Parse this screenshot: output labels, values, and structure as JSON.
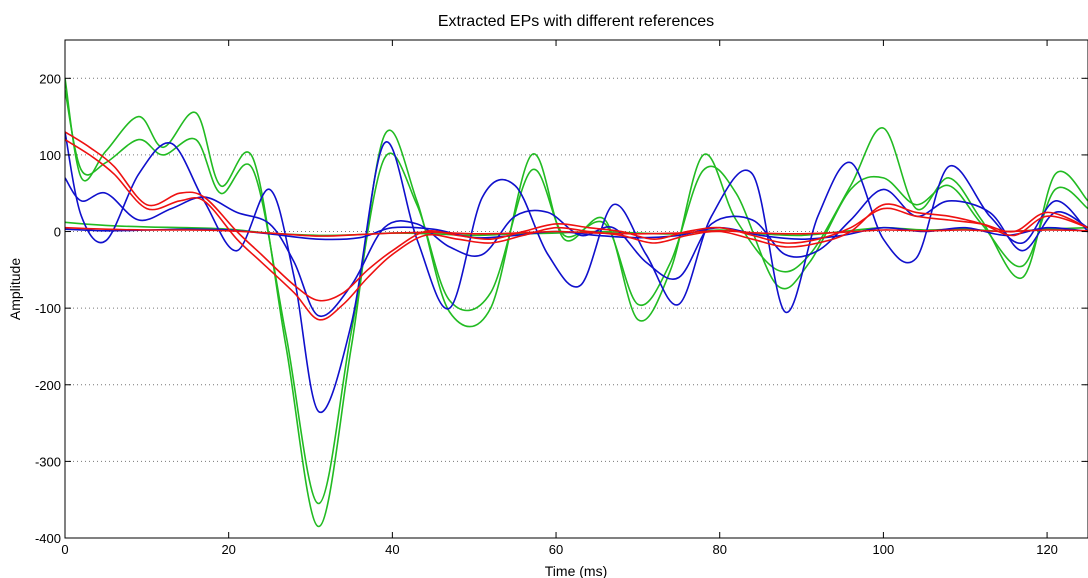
{
  "chart_data": {
    "type": "line",
    "title": "Extracted EPs with different references",
    "xlabel": "Time (ms)",
    "ylabel": "Amplitude",
    "xlim": [
      0,
      125
    ],
    "ylim": [
      -400,
      250
    ],
    "xticks": [
      0,
      20,
      40,
      60,
      80,
      100,
      120
    ],
    "yticks": [
      200,
      100,
      0,
      -100,
      -200,
      -300,
      -400
    ],
    "grid": "horizontal-dotted",
    "colors": {
      "green": "#22bb22",
      "blue": "#1010cc",
      "red": "#ee1111"
    },
    "series": [
      {
        "color": "green",
        "x": [
          0,
          2,
          5,
          9,
          12,
          16,
          19,
          23,
          27,
          31,
          35,
          39,
          43,
          47,
          52,
          57,
          61,
          66,
          70,
          74,
          78,
          82,
          87,
          91,
          96,
          100,
          104,
          108,
          112,
          117,
          121,
          125
        ],
        "y": [
          200,
          70,
          105,
          150,
          110,
          155,
          60,
          95,
          -150,
          -385,
          -150,
          125,
          40,
          -105,
          -100,
          100,
          -10,
          15,
          -115,
          -50,
          100,
          15,
          -50,
          -30,
          60,
          135,
          30,
          70,
          15,
          -60,
          75,
          40
        ]
      },
      {
        "color": "green",
        "x": [
          0,
          2,
          5,
          9,
          12,
          16,
          19,
          23,
          27,
          31,
          35,
          39,
          43,
          47,
          52,
          57,
          61,
          66,
          70,
          74,
          78,
          82,
          87,
          91,
          96,
          100,
          104,
          108,
          112,
          117,
          121,
          125
        ],
        "y": [
          185,
          80,
          90,
          120,
          100,
          120,
          50,
          80,
          -135,
          -355,
          -130,
          95,
          35,
          -90,
          -80,
          80,
          -5,
          10,
          -95,
          -40,
          80,
          50,
          -70,
          -40,
          55,
          70,
          35,
          60,
          10,
          -45,
          55,
          30
        ]
      },
      {
        "color": "green",
        "x": [
          0,
          5,
          10,
          15,
          20,
          25,
          31,
          36,
          40,
          45,
          50,
          55,
          60,
          65,
          70,
          75,
          80,
          85,
          90,
          95,
          100,
          105,
          110,
          115,
          120,
          125
        ],
        "y": [
          12,
          8,
          6,
          5,
          3,
          -2,
          -5,
          -4,
          -2,
          -3,
          -5,
          -3,
          -2,
          0,
          -2,
          -3,
          2,
          -3,
          -5,
          0,
          5,
          2,
          3,
          0,
          3,
          5
        ]
      },
      {
        "color": "blue",
        "x": [
          0,
          2,
          5,
          9,
          13,
          17,
          21,
          25,
          28,
          31,
          35,
          39,
          43,
          47,
          51,
          55,
          59,
          63,
          67,
          71,
          75,
          79,
          84,
          88,
          92,
          96,
          100,
          104,
          108,
          113,
          117,
          121,
          125
        ],
        "y": [
          130,
          20,
          -12,
          75,
          115,
          40,
          -25,
          55,
          -60,
          -235,
          -120,
          115,
          -10,
          -100,
          45,
          60,
          -30,
          -70,
          35,
          -30,
          -95,
          20,
          75,
          -105,
          20,
          90,
          -10,
          -35,
          85,
          20,
          -15,
          40,
          0
        ]
      },
      {
        "color": "blue",
        "x": [
          0,
          2,
          5,
          9,
          13,
          17,
          21,
          25,
          28,
          31,
          35,
          39,
          43,
          47,
          51,
          55,
          59,
          63,
          67,
          71,
          75,
          79,
          84,
          88,
          92,
          96,
          100,
          104,
          108,
          113,
          117,
          121,
          125
        ],
        "y": [
          70,
          40,
          50,
          15,
          30,
          45,
          25,
          10,
          -40,
          -110,
          -70,
          5,
          10,
          -20,
          -30,
          20,
          25,
          -5,
          5,
          -40,
          -60,
          10,
          15,
          -30,
          -25,
          15,
          55,
          20,
          40,
          25,
          -25,
          25,
          5
        ]
      },
      {
        "color": "blue",
        "x": [
          0,
          5,
          10,
          15,
          20,
          25,
          31,
          36,
          40,
          45,
          50,
          55,
          60,
          65,
          70,
          75,
          80,
          85,
          90,
          95,
          100,
          105,
          110,
          115,
          120,
          125
        ],
        "y": [
          3,
          1,
          2,
          3,
          2,
          -3,
          -10,
          -8,
          5,
          3,
          -8,
          -5,
          0,
          -5,
          -8,
          -5,
          5,
          -5,
          -10,
          -5,
          5,
          0,
          5,
          -5,
          5,
          0
        ]
      },
      {
        "color": "red",
        "x": [
          0,
          3,
          6,
          10,
          14,
          17,
          21,
          24,
          28,
          31,
          34,
          37,
          40,
          44,
          48,
          52,
          56,
          60,
          64,
          68,
          72,
          76,
          80,
          84,
          88,
          92,
          96,
          100,
          104,
          108,
          112,
          116,
          120,
          125
        ],
        "y": [
          120,
          100,
          75,
          30,
          40,
          40,
          -10,
          -40,
          -80,
          -115,
          -95,
          -60,
          -30,
          -5,
          -10,
          -15,
          -5,
          5,
          0,
          -5,
          -15,
          -5,
          0,
          -10,
          -20,
          -15,
          0,
          35,
          25,
          20,
          10,
          -5,
          20,
          5
        ]
      },
      {
        "color": "red",
        "x": [
          0,
          3,
          6,
          10,
          14,
          17,
          21,
          24,
          28,
          31,
          34,
          37,
          40,
          44,
          48,
          52,
          56,
          60,
          64,
          68,
          72,
          76,
          80,
          84,
          88,
          92,
          96,
          100,
          104,
          108,
          112,
          116,
          120,
          125
        ],
        "y": [
          130,
          110,
          85,
          35,
          50,
          45,
          0,
          -30,
          -70,
          -90,
          -80,
          -50,
          -25,
          0,
          -5,
          -10,
          0,
          10,
          5,
          0,
          -10,
          0,
          5,
          -5,
          -15,
          -10,
          5,
          30,
          20,
          15,
          10,
          0,
          25,
          5
        ]
      },
      {
        "color": "red",
        "x": [
          0,
          5,
          10,
          15,
          20,
          25,
          31,
          36,
          40,
          45,
          50,
          55,
          60,
          65,
          70,
          75,
          80,
          85,
          90,
          95,
          100,
          105,
          110,
          115,
          120,
          125
        ],
        "y": [
          5,
          3,
          2,
          2,
          1,
          -2,
          -6,
          -4,
          -2,
          -1,
          -3,
          -2,
          0,
          -2,
          -3,
          -2,
          1,
          -2,
          -3,
          -1,
          2,
          1,
          2,
          0,
          2,
          1
        ]
      }
    ]
  }
}
